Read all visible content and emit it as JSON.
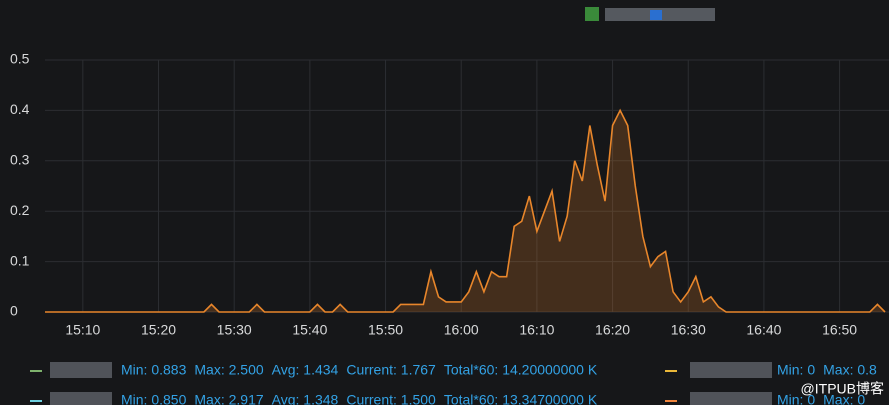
{
  "chart_data": {
    "type": "line",
    "x": [
      "15:05",
      "15:26",
      "15:27",
      "15:28",
      "15:32",
      "15:33",
      "15:34",
      "15:40",
      "15:41",
      "15:42",
      "15:43",
      "15:44",
      "15:45",
      "15:51",
      "15:52",
      "15:55",
      "15:56",
      "15:57",
      "15:58",
      "16:00",
      "16:01",
      "16:02",
      "16:03",
      "16:04",
      "16:05",
      "16:06",
      "16:07",
      "16:08",
      "16:09",
      "16:10",
      "16:11",
      "16:12",
      "16:13",
      "16:14",
      "16:15",
      "16:16",
      "16:17",
      "16:18",
      "16:19",
      "16:20",
      "16:21",
      "16:22",
      "16:23",
      "16:24",
      "16:25",
      "16:26",
      "16:27",
      "16:28",
      "16:29",
      "16:30",
      "16:31",
      "16:32",
      "16:33",
      "16:34",
      "16:35",
      "16:54",
      "16:55",
      "16:56"
    ],
    "series": [
      {
        "color": "#e8862b",
        "values": [
          0,
          0,
          0.015,
          0,
          0,
          0.015,
          0,
          0,
          0.015,
          0,
          0,
          0.015,
          0,
          0,
          0.015,
          0.015,
          0.08,
          0.03,
          0.02,
          0.02,
          0.04,
          0.08,
          0.04,
          0.08,
          0.07,
          0.07,
          0.17,
          0.18,
          0.23,
          0.16,
          0.2,
          0.24,
          0.14,
          0.19,
          0.3,
          0.26,
          0.37,
          0.29,
          0.22,
          0.37,
          0.4,
          0.37,
          0.25,
          0.15,
          0.09,
          0.11,
          0.12,
          0.04,
          0.02,
          0.04,
          0.07,
          0.02,
          0.03,
          0.01,
          0,
          0,
          0.015,
          0
        ]
      }
    ],
    "xlim": [
      "15:05",
      "16:56"
    ],
    "xticks": [
      "15:10",
      "15:20",
      "15:30",
      "15:40",
      "15:50",
      "16:00",
      "16:10",
      "16:20",
      "16:30",
      "16:40",
      "16:50"
    ],
    "ylim": [
      0,
      0.5
    ],
    "yticks": [
      0,
      0.1,
      0.2,
      0.3,
      0.4,
      0.5
    ],
    "grid": true,
    "legend": [
      {
        "color": "#7eb26d",
        "stats": [
          "Min: 0.883",
          "Max: 2.500",
          "Avg: 1.434",
          "Current: 1.767",
          "Total*60: 14.20000000 K"
        ]
      },
      {
        "color": "#eab839",
        "stats": [
          "Min: 0",
          "Max: 0.8"
        ]
      },
      {
        "color": "#6ed0e0",
        "stats": [
          "Min: 0.850",
          "Max: 2.917",
          "Avg: 1.348",
          "Current: 1.500",
          "Total*60: 13.34700000 K"
        ]
      },
      {
        "color": "#ef843c",
        "stats": [
          "Min: 0",
          "Max: 0"
        ]
      }
    ]
  },
  "watermark": "@ITPUB博客"
}
